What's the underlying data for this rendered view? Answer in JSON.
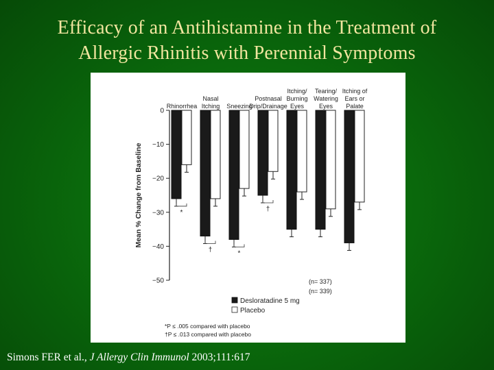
{
  "slide": {
    "title_line1": "Efficacy of an Antihistamine in the Treatment of",
    "title_line2": "Allergic Rhinitis with Perennial Symptoms",
    "citation_authors": "Simons FER et al., ",
    "citation_journal": "J Allergy Clin Immunol",
    "citation_details": " 2003;111:617",
    "title_color": "#f2e6a0",
    "background_color": "#0a6a0c"
  },
  "chart_data": {
    "type": "bar",
    "categories": [
      [
        "Rhinorrhea"
      ],
      [
        "Nasal",
        "Itching"
      ],
      [
        "Sneezing"
      ],
      [
        "Postnasal",
        "Drip/Drainage"
      ],
      [
        "Itching/",
        "Burning",
        "Eyes"
      ],
      [
        "Tearing/",
        "Watering",
        "Eyes"
      ],
      [
        "Itching of",
        "Ears or",
        "Palate"
      ]
    ],
    "series": [
      {
        "name": "Desloratadine 5 mg",
        "n_label": "(n= 337)",
        "color": "#1a1a1a",
        "values": [
          -26,
          -37,
          -38,
          -25,
          -35,
          -35,
          -39
        ]
      },
      {
        "name": "Placebo",
        "n_label": "(n= 339)",
        "color": "#ffffff",
        "values": [
          -16,
          -26,
          -23,
          -18,
          -24,
          -29,
          -27
        ]
      }
    ],
    "significance": [
      "*",
      "†",
      "*",
      "†",
      "",
      "",
      ""
    ],
    "ylabel": "Mean % Change from Baseline",
    "xlabel": "",
    "ylim": [
      -50,
      0
    ],
    "yticks": [
      0,
      -10,
      -20,
      -30,
      -40,
      -50
    ],
    "grid": false,
    "legend_position": "bottom",
    "footnotes": [
      "*P ≤ .005 compared with placebo",
      "†P ≤ .013 compared with placebo"
    ]
  }
}
